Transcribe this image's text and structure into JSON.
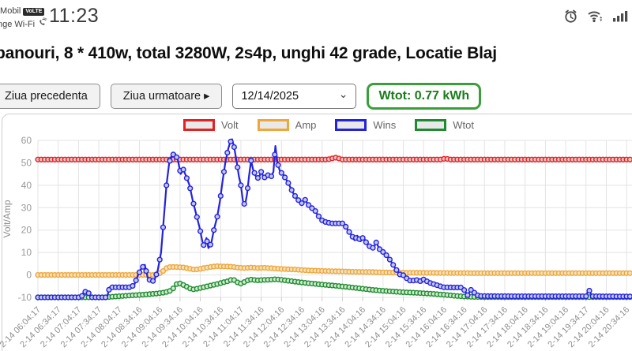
{
  "status_bar": {
    "carrier_line1": ".Mobil",
    "volte_badge": "VoLTE",
    "carrier_line2": "nge Wi-Fi",
    "time": "11:23",
    "right_icons": [
      "alarm-icon",
      "wifi-icon",
      "signal-bars-icon"
    ]
  },
  "header": {
    "title": "panouri, 8 * 410w, total 3280W, 2s4p, unghi 42 grade, Locatie Blaj"
  },
  "controls": {
    "prev_label": "Ziua precedenta",
    "next_label": "Ziua urmatoare ▸",
    "date_value": "12/14/2025",
    "wtot_label": "Wtot: 0.77 kWh"
  },
  "chart_data": {
    "type": "line",
    "title": "",
    "xlabel": "",
    "ylabel": "Volt/Amp",
    "ylim": [
      -10,
      60
    ],
    "yticks": [
      60,
      50,
      40,
      30,
      20,
      10,
      0,
      -10
    ],
    "grid": true,
    "legend_position": "top",
    "x_range_minutes": [
      0,
      878
    ],
    "sample_step_minutes": 5,
    "x_tick_minutes": [
      0,
      30,
      60,
      90,
      120,
      150,
      180,
      210,
      240,
      270,
      300,
      330,
      360,
      390,
      420,
      450,
      480,
      510,
      540,
      570,
      600,
      630,
      660,
      690,
      720,
      750,
      780,
      810,
      840,
      870
    ],
    "x_tick_labels": [
      "2-14 06:04:17",
      "2-14 06:34:17",
      "2-14 07:04:17",
      "2-14 07:34:17",
      "2-14 08:04:17",
      "2-14 08:34:16",
      "2-14 09:04:16",
      "2-14 09:34:16",
      "2-14 10:04:16",
      "2-14 10:34:16",
      "2-14 11:04:17",
      "2-14 11:34:16",
      "2-14 12:04:16",
      "2-14 12:34:16",
      "2-14 13:04:16",
      "2-14 13:34:16",
      "2-14 14:04:16",
      "2-14 14:34:16",
      "2-14 15:04:16",
      "2-14 15:34:16",
      "2-14 16:04:16",
      "2-14 16:34:16",
      "2-14 17:04:16",
      "2-14 17:34:16",
      "2-14 18:04:16",
      "2-14 18:34:16",
      "2-14 19:04:16",
      "2-14 19:34:17",
      "2-14 20:04:16",
      "2-14 20:34:16"
    ],
    "legend": [
      {
        "name": "Volt",
        "color": "#e32222"
      },
      {
        "name": "Amp",
        "color": "#efa63a"
      },
      {
        "name": "Wins",
        "color": "#2323dd"
      },
      {
        "name": "Wtot",
        "color": "#1f8a2f"
      }
    ],
    "draw_order": [
      0,
      1,
      3,
      2
    ],
    "series": [
      {
        "name": "Volt",
        "color": "#e32222",
        "point_fill": "#f0c3c3",
        "points": [
          [
            0,
            51.5
          ],
          [
            428,
            51.5
          ],
          [
            440,
            52.3
          ],
          [
            450,
            51.5
          ],
          [
            595,
            51.5
          ],
          [
            602,
            51.9
          ],
          [
            609,
            51.5
          ],
          [
            878,
            51.5
          ]
        ]
      },
      {
        "name": "Amp",
        "color": "#efa63a",
        "point_fill": "#f6e2ba",
        "points": [
          [
            0,
            0
          ],
          [
            172,
            0
          ],
          [
            178,
            0.4
          ],
          [
            184,
            1.5
          ],
          [
            190,
            3
          ],
          [
            196,
            3.6
          ],
          [
            206,
            3.5
          ],
          [
            216,
            3.3
          ],
          [
            224,
            2.8
          ],
          [
            230,
            2.4
          ],
          [
            236,
            2.5
          ],
          [
            244,
            3
          ],
          [
            252,
            3.4
          ],
          [
            263,
            3.9
          ],
          [
            275,
            3.8
          ],
          [
            285,
            3.7
          ],
          [
            295,
            3.3
          ],
          [
            305,
            3.1
          ],
          [
            315,
            3.3
          ],
          [
            325,
            3.1
          ],
          [
            335,
            3.2
          ],
          [
            345,
            3
          ],
          [
            352,
            2.8
          ],
          [
            365,
            2.6
          ],
          [
            380,
            2.4
          ],
          [
            399,
            2
          ],
          [
            420,
            1.8
          ],
          [
            446,
            1.6
          ],
          [
            470,
            1.4
          ],
          [
            492,
            1.3
          ],
          [
            515,
            1.1
          ],
          [
            539,
            1
          ],
          [
            560,
            0.95
          ],
          [
            582,
            0.9
          ],
          [
            610,
            0.85
          ],
          [
            650,
            0.8
          ],
          [
            700,
            0.8
          ],
          [
            878,
            0.8
          ]
        ]
      },
      {
        "name": "Wins",
        "color": "#2323dd",
        "point_fill": "#c6c8f2",
        "points": [
          [
            0,
            -10
          ],
          [
            64,
            -10
          ],
          [
            68,
            -7.5
          ],
          [
            74,
            -7.5
          ],
          [
            78,
            -10
          ],
          [
            102,
            -10
          ],
          [
            106,
            -5.5
          ],
          [
            138,
            -5.5
          ],
          [
            143,
            -4
          ],
          [
            148,
            0
          ],
          [
            153,
            3
          ],
          [
            158,
            4.5
          ],
          [
            162,
            -1
          ],
          [
            167,
            -3
          ],
          [
            172,
            -2.5
          ],
          [
            177,
            2
          ],
          [
            182,
            10
          ],
          [
            186,
            25
          ],
          [
            190,
            40
          ],
          [
            194,
            50
          ],
          [
            198,
            53.5
          ],
          [
            203,
            54
          ],
          [
            207,
            51
          ],
          [
            211,
            45
          ],
          [
            215,
            47
          ],
          [
            219,
            44
          ],
          [
            224,
            40
          ],
          [
            229,
            33
          ],
          [
            234,
            27
          ],
          [
            239,
            21
          ],
          [
            243,
            15
          ],
          [
            246,
            12.5
          ],
          [
            249,
            16.5
          ],
          [
            252,
            12
          ],
          [
            256,
            14
          ],
          [
            260,
            20
          ],
          [
            265,
            26
          ],
          [
            269,
            33
          ],
          [
            273,
            42
          ],
          [
            277,
            50
          ],
          [
            281,
            56
          ],
          [
            284,
            59
          ],
          [
            287,
            60.5
          ],
          [
            290,
            57
          ],
          [
            294,
            50
          ],
          [
            297,
            44
          ],
          [
            300,
            40
          ],
          [
            303,
            33
          ],
          [
            306,
            31
          ],
          [
            309,
            36
          ],
          [
            312,
            44
          ],
          [
            315,
            51
          ],
          [
            318,
            47
          ],
          [
            322,
            44
          ],
          [
            326,
            43
          ],
          [
            330,
            46
          ],
          [
            333,
            44
          ],
          [
            337,
            43
          ],
          [
            341,
            45
          ],
          [
            345,
            44
          ],
          [
            348,
            46
          ],
          [
            351,
            57.5
          ],
          [
            354,
            50
          ],
          [
            358,
            46
          ],
          [
            362,
            45
          ],
          [
            366,
            43
          ],
          [
            370,
            41
          ],
          [
            374,
            38.5
          ],
          [
            378,
            36
          ],
          [
            382,
            34.5
          ],
          [
            386,
            33
          ],
          [
            390,
            32
          ],
          [
            394,
            34
          ],
          [
            398,
            32
          ],
          [
            403,
            30
          ],
          [
            408,
            29.5
          ],
          [
            413,
            27
          ],
          [
            419,
            24.5
          ],
          [
            426,
            23.5
          ],
          [
            434,
            23
          ],
          [
            452,
            23
          ],
          [
            458,
            20
          ],
          [
            464,
            17.5
          ],
          [
            468,
            15.5
          ],
          [
            472,
            17.5
          ],
          [
            477,
            15
          ],
          [
            481,
            17
          ],
          [
            486,
            14
          ],
          [
            491,
            12.5
          ],
          [
            496,
            12
          ],
          [
            500,
            14.5
          ],
          [
            505,
            11.5
          ],
          [
            511,
            10
          ],
          [
            516,
            8.5
          ],
          [
            522,
            6
          ],
          [
            528,
            3
          ],
          [
            533,
            1
          ],
          [
            537,
            -0.5
          ],
          [
            541,
            0
          ],
          [
            545,
            -1.5
          ],
          [
            550,
            -2.5
          ],
          [
            558,
            -2.5
          ],
          [
            563,
            -2
          ],
          [
            567,
            -3.5
          ],
          [
            571,
            -1.5
          ],
          [
            576,
            -3.2
          ],
          [
            584,
            -4
          ],
          [
            592,
            -4.8
          ],
          [
            600,
            -5.5
          ],
          [
            612,
            -5.6
          ],
          [
            626,
            -5.6
          ],
          [
            631,
            -7
          ],
          [
            635,
            -9
          ],
          [
            641,
            -6.2
          ],
          [
            647,
            -8.8
          ],
          [
            653,
            -9.4
          ],
          [
            700,
            -9.5
          ],
          [
            810,
            -9.5
          ],
          [
            814,
            -6.4
          ],
          [
            819,
            -9.5
          ],
          [
            878,
            -9.6
          ]
        ]
      },
      {
        "name": "Wtot",
        "color": "#1f8a2f",
        "point_fill": "#cdeccd",
        "points": [
          [
            0,
            -10
          ],
          [
            100,
            -10
          ],
          [
            115,
            -9.6
          ],
          [
            135,
            -9.2
          ],
          [
            155,
            -8.8
          ],
          [
            175,
            -8.3
          ],
          [
            188,
            -7.8
          ],
          [
            196,
            -7
          ],
          [
            202,
            -5.5
          ],
          [
            206,
            -3.6
          ],
          [
            210,
            -3.8
          ],
          [
            216,
            -4.6
          ],
          [
            222,
            -5.6
          ],
          [
            228,
            -6.5
          ],
          [
            236,
            -6.1
          ],
          [
            246,
            -5.4
          ],
          [
            256,
            -4.7
          ],
          [
            266,
            -4
          ],
          [
            274,
            -3.3
          ],
          [
            281,
            -2.8
          ],
          [
            287,
            -2
          ],
          [
            291,
            -2.4
          ],
          [
            298,
            -4
          ],
          [
            303,
            -3.6
          ],
          [
            308,
            -2.5
          ],
          [
            315,
            -2.1
          ],
          [
            325,
            -2.4
          ],
          [
            335,
            -2.2
          ],
          [
            345,
            -2.1
          ],
          [
            352,
            -1.9
          ],
          [
            365,
            -2.4
          ],
          [
            380,
            -3
          ],
          [
            400,
            -3.7
          ],
          [
            420,
            -4.3
          ],
          [
            446,
            -5
          ],
          [
            470,
            -5.8
          ],
          [
            492,
            -6.6
          ],
          [
            515,
            -7.2
          ],
          [
            539,
            -7.7
          ],
          [
            560,
            -8
          ],
          [
            582,
            -8.4
          ],
          [
            600,
            -8.8
          ],
          [
            615,
            -9.3
          ],
          [
            635,
            -9.7
          ],
          [
            660,
            -9.9
          ],
          [
            878,
            -9.9
          ]
        ]
      }
    ]
  }
}
